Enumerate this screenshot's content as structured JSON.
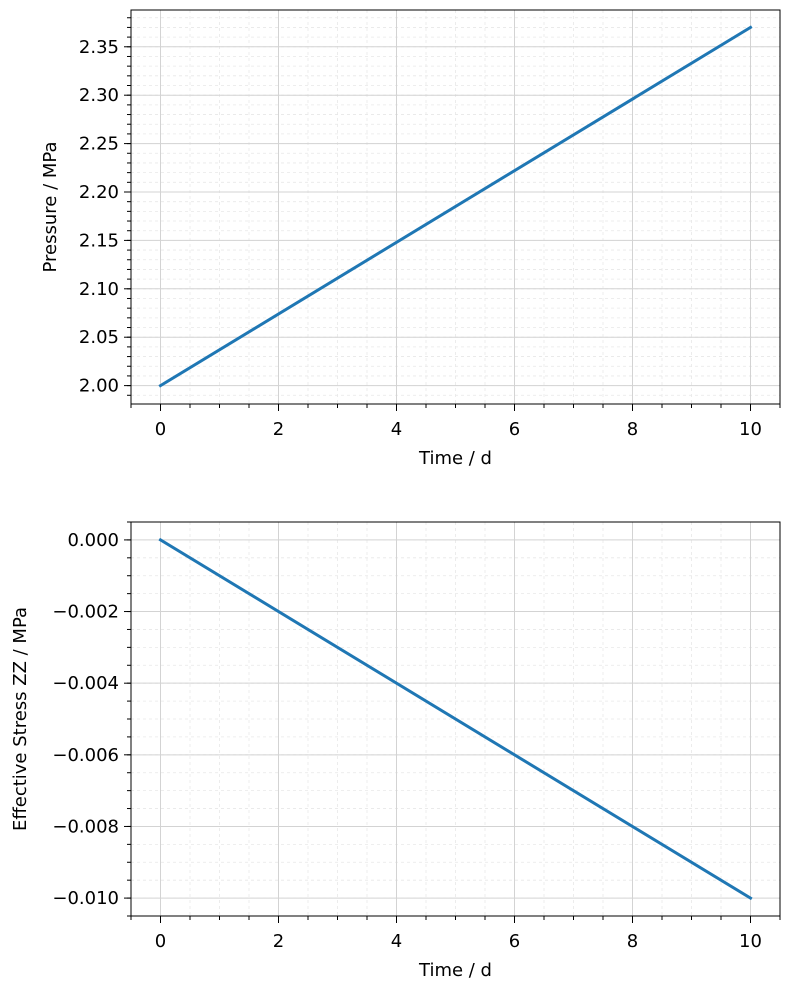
{
  "chart_data": [
    {
      "type": "line",
      "title": "",
      "xlabel": "Time / d",
      "ylabel": "Pressure / MPa",
      "xlim": [
        -0.5,
        10.5
      ],
      "ylim": [
        1.981,
        2.388
      ],
      "x_ticks": [
        0,
        2,
        4,
        6,
        8,
        10
      ],
      "x_tick_labels": [
        "0",
        "2",
        "4",
        "6",
        "8",
        "10"
      ],
      "y_ticks": [
        2.0,
        2.05,
        2.1,
        2.15,
        2.2,
        2.25,
        2.3,
        2.35
      ],
      "y_tick_labels": [
        "2.00",
        "2.05",
        "2.10",
        "2.15",
        "2.20",
        "2.25",
        "2.30",
        "2.35"
      ],
      "x_minor_step": 0.5,
      "y_minor_step": 0.01,
      "grid": true,
      "minor_grid": true,
      "legend": "none",
      "series": [
        {
          "x": [
            0,
            10
          ],
          "values": [
            2.0,
            2.37
          ],
          "color": "#1f77b4"
        }
      ]
    },
    {
      "type": "line",
      "title": "",
      "xlabel": "Time / d",
      "ylabel": "Effective Stress ZZ / MPa",
      "xlim": [
        -0.5,
        10.5
      ],
      "ylim": [
        -0.0105,
        0.0005
      ],
      "x_ticks": [
        0,
        2,
        4,
        6,
        8,
        10
      ],
      "x_tick_labels": [
        "0",
        "2",
        "4",
        "6",
        "8",
        "10"
      ],
      "y_ticks": [
        0.0,
        -0.002,
        -0.004,
        -0.006,
        -0.008,
        -0.01
      ],
      "y_tick_labels": [
        "0.000",
        "−0.002",
        "−0.004",
        "−0.006",
        "−0.008",
        "−0.010"
      ],
      "x_minor_step": 0.5,
      "y_minor_step": 0.0005,
      "grid": true,
      "minor_grid": true,
      "legend": "none",
      "series": [
        {
          "x": [
            0,
            10
          ],
          "values": [
            0.0,
            -0.01
          ],
          "color": "#1f77b4"
        }
      ]
    }
  ]
}
